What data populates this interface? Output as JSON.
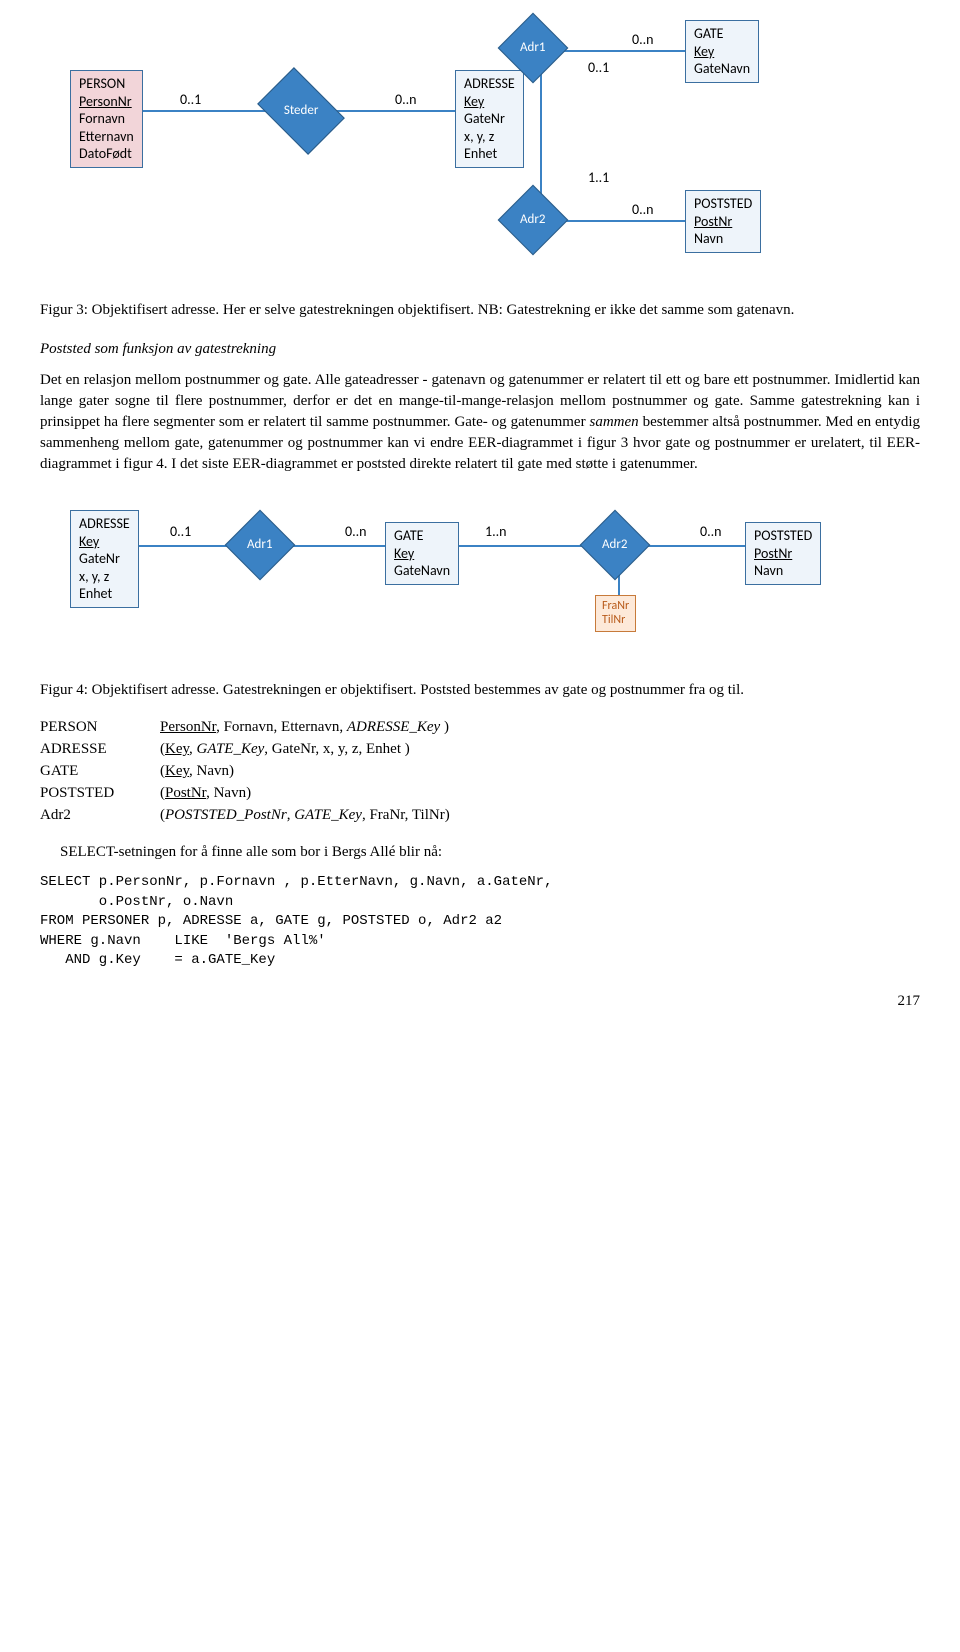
{
  "fig3": {
    "entities": {
      "person": {
        "title": "PERSON",
        "attrs": [
          "PersonNr",
          "Fornavn",
          "Etternavn",
          "DatoFødt"
        ],
        "bg": "#f2d5d9",
        "underline_idx": 0
      },
      "adresse": {
        "title": "ADRESSE",
        "attrs": [
          "Key",
          "GateNr",
          "x, y, z",
          "Enhet"
        ],
        "bg": "#eef4fa",
        "underline_idx": 0
      },
      "gate": {
        "title": "GATE",
        "attrs": [
          "Key",
          "GateNavn"
        ],
        "bg": "#eef4fa",
        "underline_idx": 0
      },
      "poststed": {
        "title": "POSTSTED",
        "attrs": [
          "PostNr",
          "Navn"
        ],
        "bg": "#eef4fa",
        "underline_idx": 0
      }
    },
    "rels": {
      "steder": "Steder",
      "adr1": "Adr1",
      "adr2": "Adr2"
    },
    "cards": {
      "c1": "0..1",
      "c2": "0..n",
      "c3": "0..n",
      "c4": "0..1",
      "c5": "1..1",
      "c6": "0..n"
    },
    "caption_a": "Figur 3: Objektifisert adresse. Her er selve gatestrekningen objektifisert. NB: Gatestrekning er ikke det samme som gatenavn."
  },
  "section_heading": "Poststed som funksjon av gatestrekning",
  "para1": "Det en relasjon mellom postnummer og gate. Alle gateadresser - gatenavn og gatenummer er relatert til ett og bare ett postnummer. Imidlertid kan lange gater sogne til flere postnummer, derfor er det en mange-til-mange-relasjon mellom postnummer og gate. Samme gatestrekning kan i prinsippet ha flere segmenter som er relatert til samme postnummer. Gate- og gatenummer ",
  "para1_i": "sammen",
  "para1_b": " bestemmer altså postnummer. Med en entydig sammenheng mellom gate, gatenummer og postnummer kan vi endre EER-diagrammet i figur 3 hvor gate og postnummer er urelatert, til EER-diagrammet i figur 4. I det siste EER-diagrammet er poststed direkte relatert til gate med støtte i gatenummer.",
  "fig4": {
    "entities": {
      "adresse": {
        "title": "ADRESSE",
        "attrs": [
          "Key",
          "GateNr",
          "x, y, z",
          "Enhet"
        ],
        "bg": "#eef4fa",
        "underline_idx": 0
      },
      "gate": {
        "title": "GATE",
        "attrs": [
          "Key",
          "GateNavn"
        ],
        "bg": "#eef4fa",
        "underline_idx": 0
      },
      "poststed": {
        "title": "POSTSTED",
        "attrs": [
          "PostNr",
          "Navn"
        ],
        "bg": "#eef4fa",
        "underline_idx": 0
      }
    },
    "rels": {
      "adr1": "Adr1",
      "adr2": "Adr2"
    },
    "attrs": [
      "FraNr",
      "TilNr"
    ],
    "cards": {
      "c1": "0..1",
      "c2": "0..n",
      "c3": "1..n",
      "c4": "0..n"
    },
    "caption": "Figur 4: Objektifisert adresse. Gatestrekningen er objektifisert. Poststed bestemmes av gate og postnummer fra og til."
  },
  "schema": [
    {
      "label": "PERSON",
      "parts": [
        {
          "t": "PersonNr",
          "u": 1
        },
        {
          "t": ", Fornavn, Etternavn, "
        },
        {
          "t": "ADRESSE_Key",
          "i": 1
        },
        {
          "t": " )"
        }
      ]
    },
    {
      "label": "ADRESSE",
      "parts": [
        {
          "t": "("
        },
        {
          "t": "Key",
          "u": 1
        },
        {
          "t": ", "
        },
        {
          "t": "GATE_Key",
          "i": 1
        },
        {
          "t": ", GateNr, x, y, z, Enhet )"
        }
      ]
    },
    {
      "label": "GATE",
      "parts": [
        {
          "t": "("
        },
        {
          "t": "Key",
          "u": 1
        },
        {
          "t": ", Navn)"
        }
      ]
    },
    {
      "label": "POSTSTED",
      "parts": [
        {
          "t": "("
        },
        {
          "t": "PostNr",
          "u": 1
        },
        {
          "t": ", Navn)"
        }
      ]
    },
    {
      "label": "Adr2",
      "parts": [
        {
          "t": "("
        },
        {
          "t": "POSTSTED_PostNr",
          "i": 1
        },
        {
          "t": ", "
        },
        {
          "t": "GATE_Key",
          "i": 1
        },
        {
          "t": ", FraNr, TilNr)"
        }
      ]
    }
  ],
  "select_intro": "SELECT-setningen for å finne alle som bor i Bergs Allé blir nå:",
  "sql": "SELECT p.PersonNr, p.Fornavn , p.EtterNavn, g.Navn, a.GateNr,\n       o.PostNr, o.Navn\nFROM PERSONER p, ADRESSE a, GATE g, POSTSTED o, Adr2 a2\nWHERE g.Navn    LIKE  'Bergs All%'\n   AND g.Key    = a.GATE_Key",
  "page_number": "217",
  "colors": {
    "entity_border": "#3b6fa0",
    "diamond_fill": "#3b82c4",
    "diamond_border": "#2a5a85",
    "attr_border": "#c77a3a",
    "attr_bg": "#fde9d9",
    "attr_text": "#b85a1a"
  }
}
